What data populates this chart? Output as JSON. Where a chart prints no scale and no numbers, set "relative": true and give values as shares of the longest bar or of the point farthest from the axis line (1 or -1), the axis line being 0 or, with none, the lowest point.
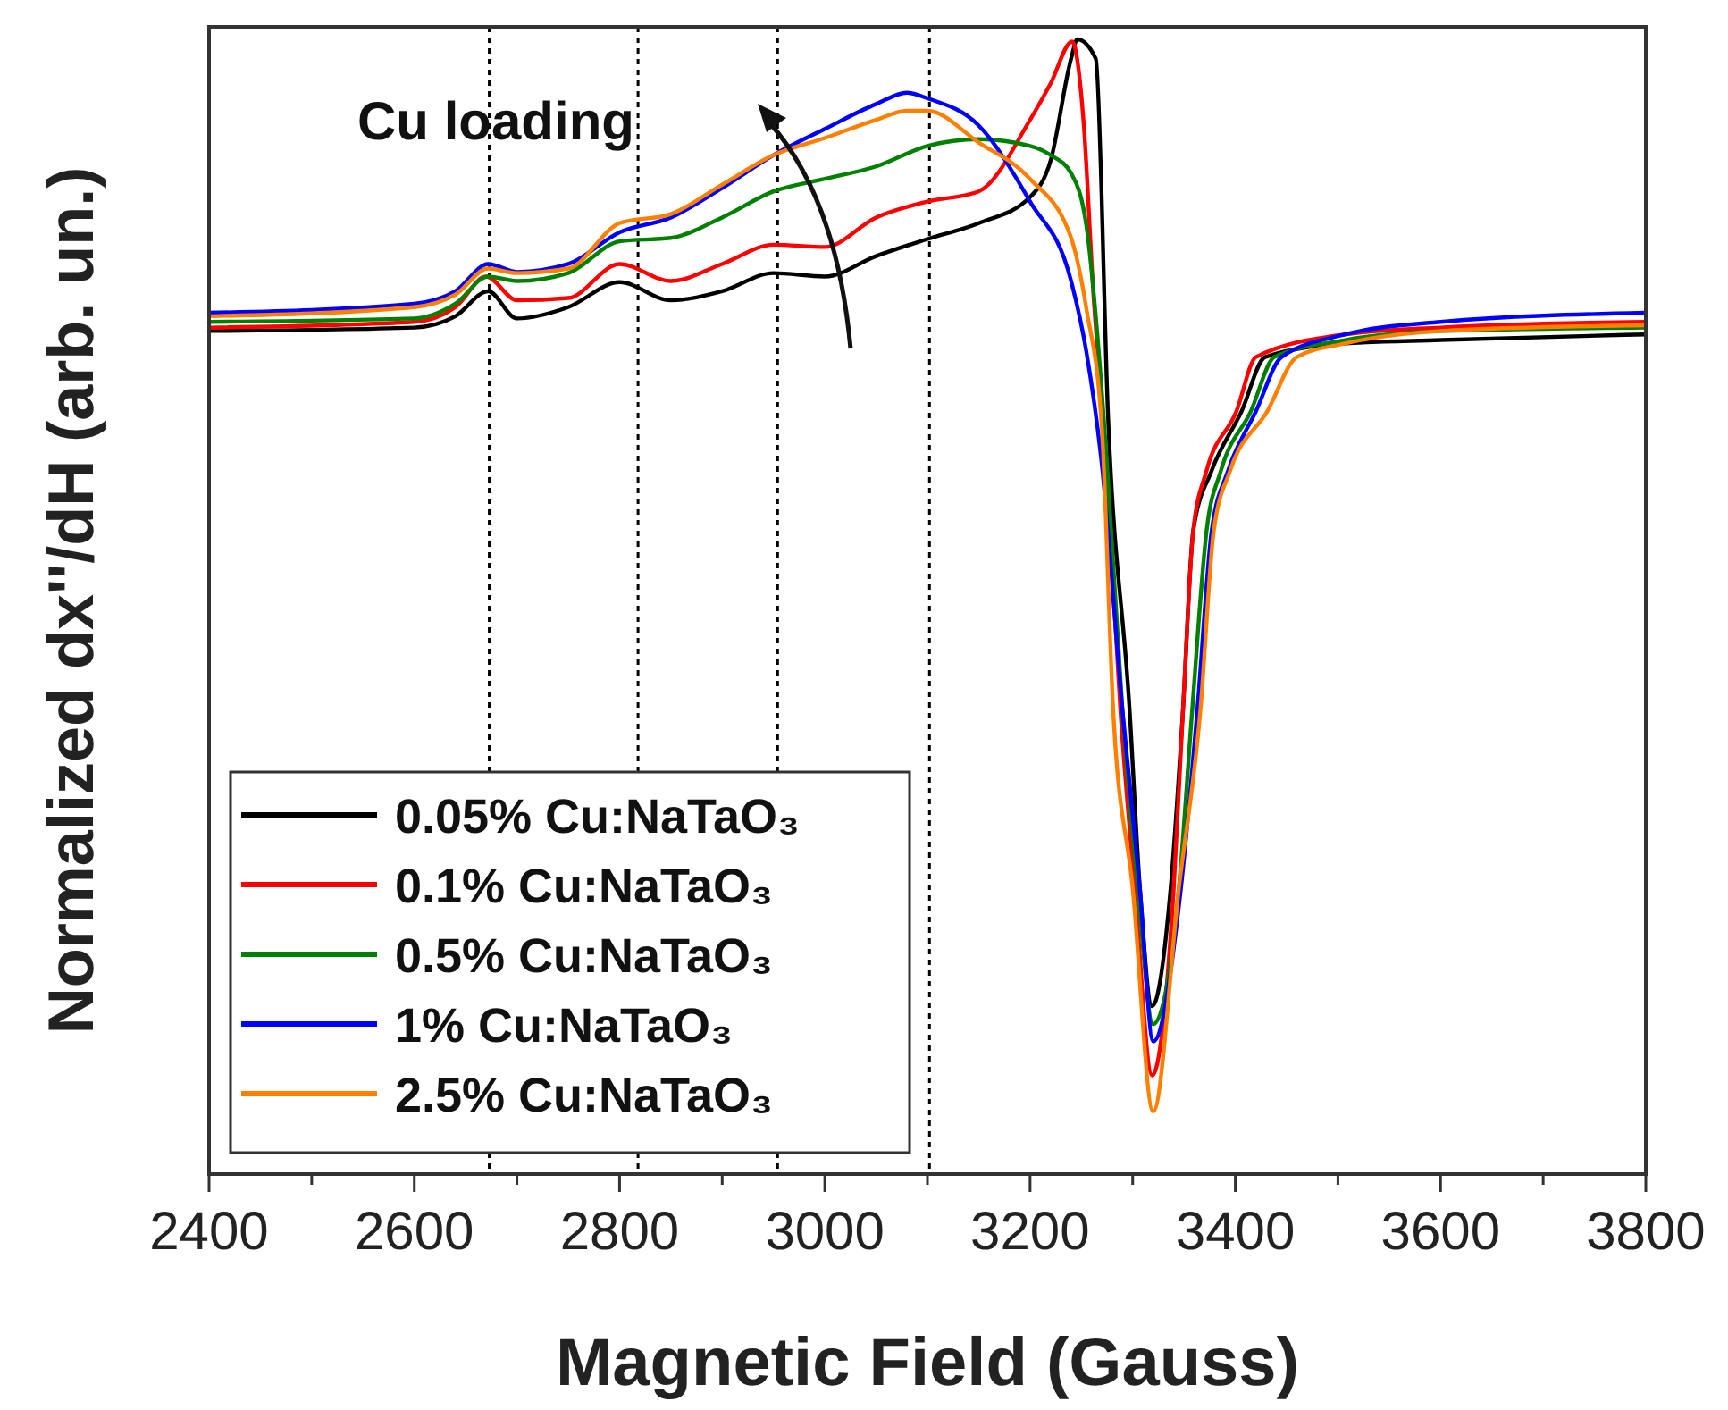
{
  "chart_data": {
    "type": "line",
    "relative": true,
    "xlabel": "Magnetic Field (Gauss)",
    "ylabel": "Normalized dx''/dH (arb. un.)",
    "xlim": [
      2400,
      3800
    ],
    "xticks": [
      2400,
      {
        "value": 2500,
        "label": null
      },
      2600,
      {
        "value": 2700,
        "label": null
      },
      2800,
      {
        "value": 2900,
        "label": null
      },
      3000,
      {
        "value": 3100,
        "label": null
      },
      3200,
      {
        "value": 3300,
        "label": null
      },
      3400,
      {
        "value": 3500,
        "label": null
      },
      3600,
      {
        "value": 3700,
        "label": null
      },
      3800
    ],
    "tick_labels": "x",
    "grid": false,
    "legend": "bottom left",
    "line_style": "solid",
    "annotations": [
      "Cu loading"
    ],
    "ref_lines": [
      {
        "axis": "x",
        "value": 2673,
        "color": "#000000",
        "line_style": "dotted"
      },
      {
        "axis": "x",
        "value": 2818,
        "color": "#000000",
        "line_style": "dotted"
      },
      {
        "axis": "x",
        "value": 2954,
        "color": "#000000",
        "line_style": "dotted"
      },
      {
        "axis": "x",
        "value": 3102,
        "color": "#000000",
        "line_style": "dotted"
      }
    ],
    "series": [
      {
        "name": "0.05% Cu:NaTaO₃",
        "color": "#000000",
        "x": [
          2400,
          2600,
          2640,
          2672,
          2700,
          2750,
          2800,
          2850,
          2900,
          2950,
          3000,
          3050,
          3100,
          3150,
          3200,
          3220,
          3240,
          3246,
          3264,
          3276,
          3297,
          3307,
          3319,
          3337,
          3349,
          3359,
          3377,
          3406,
          3429,
          3507,
          3600,
          3800
        ],
        "values": [
          0.743,
          0.746,
          0.756,
          0.778,
          0.754,
          0.764,
          0.786,
          0.77,
          0.778,
          0.794,
          0.791,
          0.809,
          0.824,
          0.838,
          0.861,
          0.893,
          0.983,
          1.0,
          0.983,
          0.668,
          0.409,
          0.252,
          0.148,
          0.252,
          0.409,
          0.567,
          0.62,
          0.672,
          0.72,
          0.732,
          0.735,
          0.74
        ]
      },
      {
        "name": "0.1% Cu:NaTaO₃",
        "color": "#ff0000",
        "x": [
          2400,
          2600,
          2640,
          2670,
          2700,
          2750,
          2800,
          2850,
          2900,
          2950,
          3000,
          3050,
          3100,
          3150,
          3200,
          3220,
          3241,
          3252,
          3262,
          3272,
          3288,
          3302,
          3319,
          3340,
          3349,
          3359,
          3372,
          3401,
          3420,
          3507,
          3600,
          3800
        ],
        "values": [
          0.746,
          0.751,
          0.764,
          0.791,
          0.77,
          0.772,
          0.802,
          0.787,
          0.802,
          0.819,
          0.817,
          0.843,
          0.857,
          0.866,
          0.929,
          0.961,
          0.998,
          0.929,
          0.772,
          0.657,
          0.409,
          0.252,
          0.087,
          0.252,
          0.409,
          0.567,
          0.62,
          0.672,
          0.72,
          0.74,
          0.746,
          0.751
        ]
      },
      {
        "name": "0.5% Cu:NaTaO₃",
        "color": "#008000",
        "x": [
          2400,
          2600,
          2640,
          2672,
          2700,
          2750,
          2800,
          2850,
          2900,
          2950,
          3000,
          3050,
          3100,
          3150,
          3200,
          3220,
          3240,
          3255,
          3265,
          3275,
          3290,
          3305,
          3320,
          3345,
          3358,
          3372,
          3386,
          3415,
          3438,
          3507,
          3600,
          3800
        ],
        "values": [
          0.751,
          0.754,
          0.767,
          0.791,
          0.787,
          0.794,
          0.822,
          0.825,
          0.843,
          0.866,
          0.877,
          0.888,
          0.906,
          0.912,
          0.906,
          0.898,
          0.882,
          0.835,
          0.746,
          0.625,
          0.409,
          0.252,
          0.132,
          0.252,
          0.409,
          0.567,
          0.62,
          0.672,
          0.72,
          0.735,
          0.743,
          0.746
        ]
      },
      {
        "name": "1% Cu:NaTaO₃",
        "color": "#0000ff",
        "x": [
          2400,
          2600,
          2640,
          2672,
          2700,
          2750,
          2800,
          2850,
          2900,
          2950,
          3000,
          3050,
          3080,
          3100,
          3150,
          3200,
          3240,
          3255,
          3270,
          3290,
          3307,
          3320,
          3347,
          3363,
          3377,
          3393,
          3420,
          3445,
          3507,
          3600,
          3800
        ],
        "values": [
          0.759,
          0.767,
          0.778,
          0.802,
          0.795,
          0.802,
          0.83,
          0.843,
          0.869,
          0.898,
          0.921,
          0.943,
          0.953,
          0.948,
          0.924,
          0.857,
          0.787,
          0.724,
          0.625,
          0.409,
          0.252,
          0.117,
          0.252,
          0.409,
          0.567,
          0.62,
          0.672,
          0.72,
          0.74,
          0.751,
          0.759
        ]
      },
      {
        "name": "2.5% Cu:NaTaO₃",
        "color": "#ff8000",
        "x": [
          2400,
          2600,
          2640,
          2672,
          2700,
          2750,
          2800,
          2850,
          2900,
          2950,
          3000,
          3050,
          3080,
          3100,
          3150,
          3200,
          3240,
          3255,
          3270,
          3281,
          3300,
          3320,
          3345,
          3366,
          3379,
          3395,
          3431,
          3460,
          3507,
          3600,
          3800
        ],
        "values": [
          0.756,
          0.764,
          0.775,
          0.798,
          0.794,
          0.798,
          0.838,
          0.846,
          0.872,
          0.898,
          0.913,
          0.929,
          0.937,
          0.937,
          0.909,
          0.877,
          0.825,
          0.762,
          0.657,
          0.409,
          0.252,
          0.055,
          0.252,
          0.409,
          0.567,
          0.62,
          0.672,
          0.72,
          0.732,
          0.743,
          0.748
        ]
      }
    ]
  }
}
